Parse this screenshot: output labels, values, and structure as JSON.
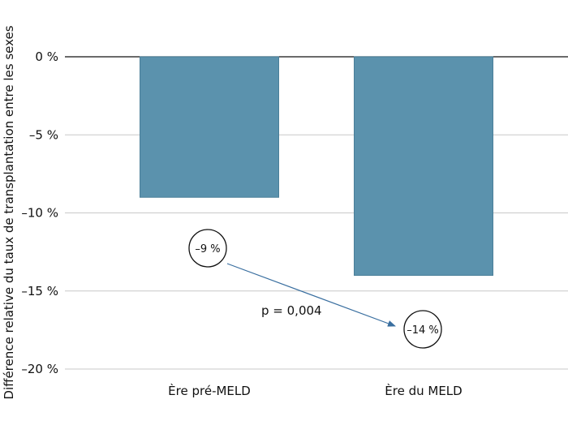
{
  "chart_data": {
    "type": "bar",
    "categories": [
      "Ère pré-MELD",
      "Ère du MELD"
    ],
    "values": [
      -9,
      -14
    ],
    "ylabel": "Différence relative du taux de transplantation entre les sexes",
    "xlabel": "",
    "ylim": [
      -20,
      0
    ],
    "yticks": [
      0,
      -5,
      -10,
      -15,
      -20
    ],
    "ytick_labels": [
      "0 %",
      "–5 %",
      "–10 %",
      "–15 %",
      "–20 %"
    ],
    "grid": true,
    "bar_color": "#5b92ad",
    "annotations": {
      "start_label": "–9 %",
      "end_label": "–14 %",
      "p_value": "p = 0,004",
      "arrow_color": "#3a6fa0"
    }
  }
}
